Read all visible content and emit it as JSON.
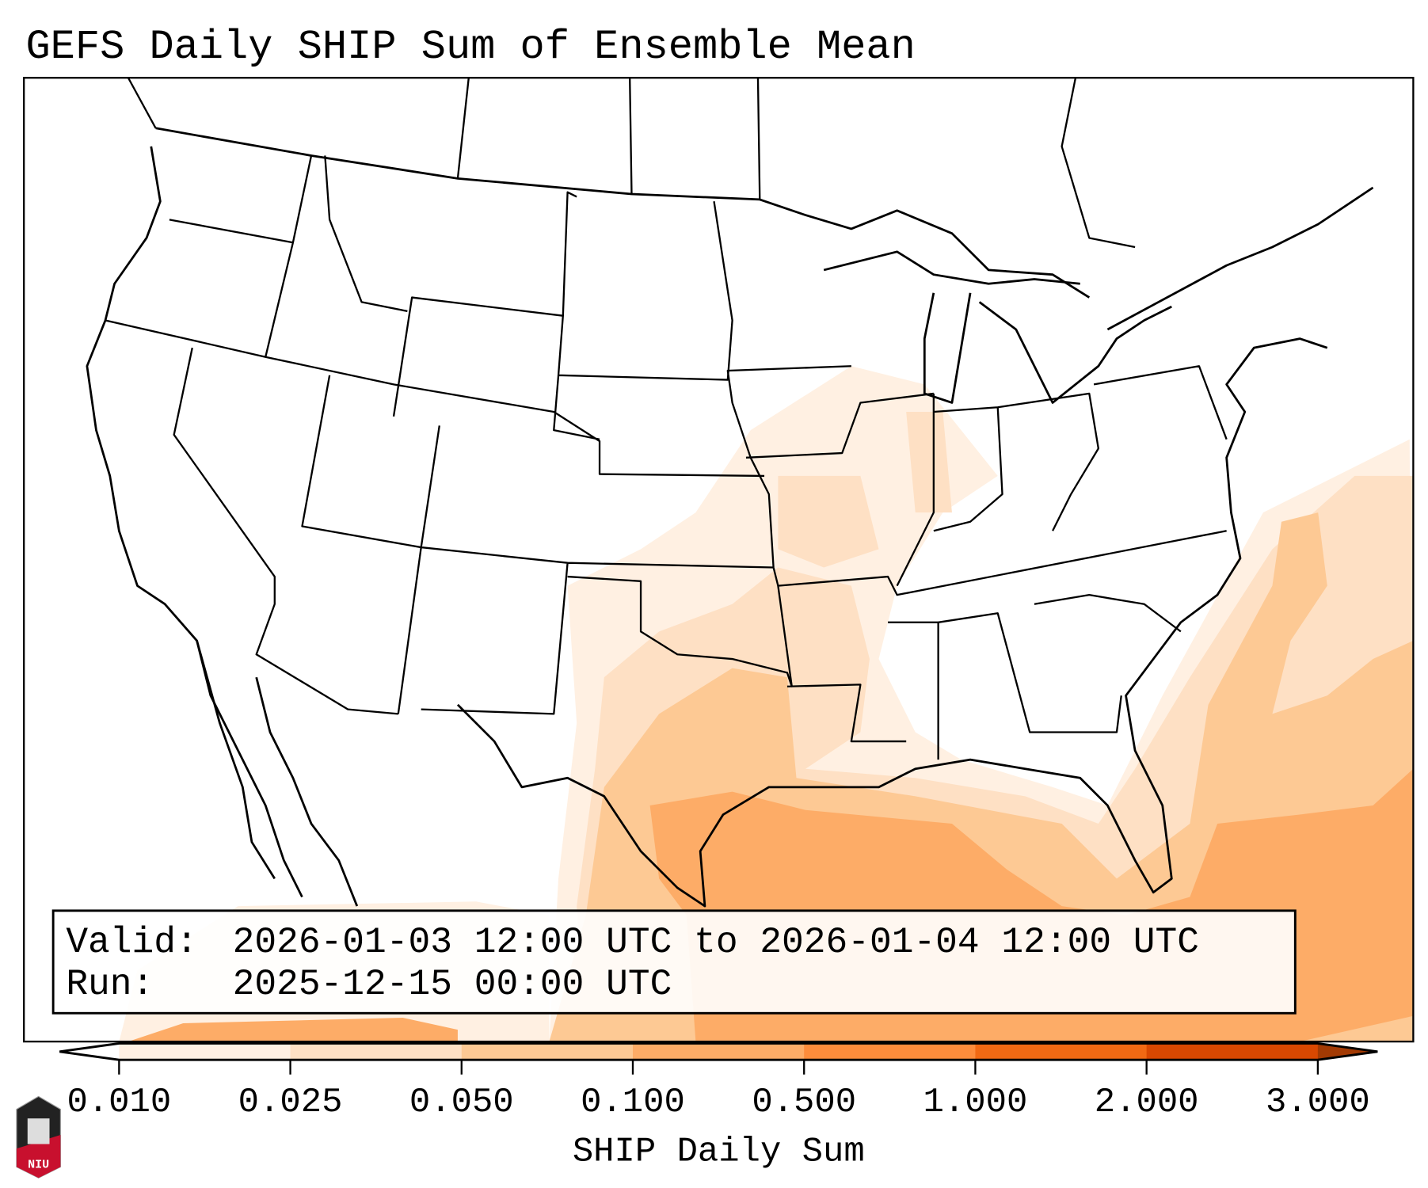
{
  "title": "GEFS Daily SHIP Sum of Ensemble Mean",
  "info_box": {
    "valid_label": "Valid:",
    "valid_value": "2026-01-03 12:00 UTC to 2026-01-04 12:00 UTC",
    "run_label": "Run:",
    "run_value": "2025-12-15 00:00 UTC"
  },
  "colorbar": {
    "label": "SHIP Daily Sum",
    "ticks": [
      "0.010",
      "0.025",
      "0.050",
      "0.100",
      "0.500",
      "1.000",
      "2.000",
      "3.000"
    ],
    "bin_colors": [
      "#fff0e2",
      "#fee0c4",
      "#fdc994",
      "#fdac67",
      "#fd8c3b",
      "#f16913",
      "#d94801"
    ],
    "under_color": "#ffffff",
    "over_color": "#a33a03"
  },
  "logo": {
    "text": "NIU"
  }
}
